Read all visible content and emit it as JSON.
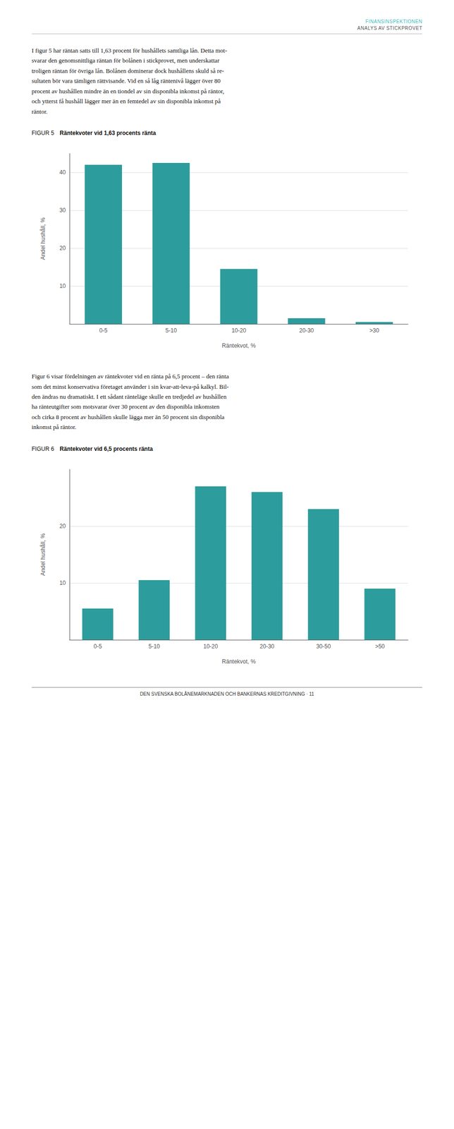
{
  "header": {
    "title": "FINANSINSPEKTIONEN",
    "subtitle": "ANALYS AV STICKPROVET",
    "color": "#3dbdbd"
  },
  "texts": [
    "I figur 5 har räntan satts till 1,63 procent för hushållets samtliga lån. Detta mot-\nsvarar den genomsnittliga räntan för bolånen i stickprovet, men underskattar\ntroligen räntan för övriga lån. Bolånen dominerar dock hushållens skuld så re-\nsultaten bör vara tämligen rättvisande. Vid en så låg räntenivå lägger över 80\nprocent av hushållen mindre än en tiondel av sin disponibla inkomst på räntor,\noch ytterst få hushåll lägger mer än en femtedel av sin disponibla inkomst på\nräntor.",
    "Figur 6 visar fördelningen av räntekvoter vid en ränta på 6,5 procent – den ränta\nsom det minst konservativa företaget använder i sin kvar-att-leva-på kalkyl. Bil-\nden ändras nu dramatiskt. I ett sådant ränteläge skulle en tredjedel av hushållen\nha ränteutgifter som motsvarar över 30 procent av den disponibla inkomsten\noch cirka 8 procent av hushållen skulle lägga mer än 50 procent sin disponibla\ninkomst på räntor."
  ],
  "footer": "DEN SVENSKA BOLÅNEMARKNADEN OCH BANKERNAS KREDITGIVNING · 11",
  "chart_data": [
    {
      "type": "bar",
      "figure_label": "FIGUR 5",
      "title": "Räntekvoter vid 1,63 procents ränta",
      "categories": [
        "0-5",
        "5-10",
        "10-20",
        "20-30",
        ">30"
      ],
      "values": [
        42.0,
        42.5,
        14.5,
        1.5,
        0.5
      ],
      "color": "#2d9c9c",
      "ylim": [
        0,
        45
      ],
      "yticks": [
        10,
        20,
        30,
        40
      ],
      "ylabel": "Andel hushåll, %",
      "xlabel": "Räntekvot, %",
      "grid": true
    },
    {
      "type": "bar",
      "figure_label": "FIGUR 6",
      "title": "Räntekvoter vid 6,5 procents ränta",
      "categories": [
        "0-5",
        "5-10",
        "10-20",
        "20-30",
        "30-50",
        ">50"
      ],
      "values": [
        5.5,
        10.5,
        27.0,
        26.0,
        23.0,
        9.0
      ],
      "color": "#2d9c9c",
      "ylim": [
        0,
        30
      ],
      "yticks": [
        10,
        20
      ],
      "ylabel": "Andel hushåll, %",
      "xlabel": "Räntekvot, %",
      "grid": true
    }
  ]
}
